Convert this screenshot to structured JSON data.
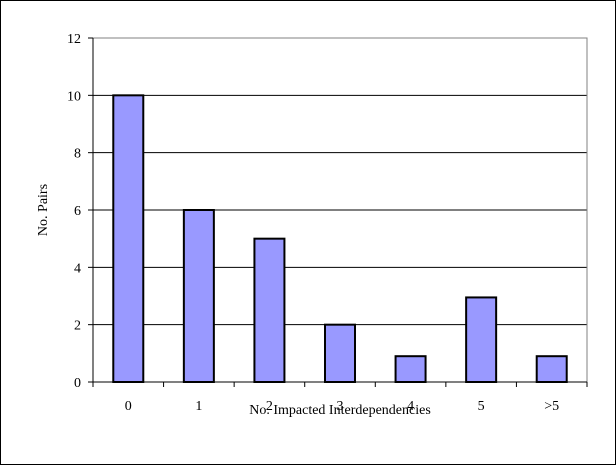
{
  "chart_data": {
    "type": "bar",
    "categories": [
      "0",
      "1",
      "2",
      "3",
      "4",
      "5",
      ">5"
    ],
    "values": [
      10,
      6,
      5,
      2,
      0.9,
      2.95,
      0.9
    ],
    "xlabel": "No. Impacted Interdependencies",
    "ylabel": "No. Pairs",
    "ylim": [
      0,
      12
    ],
    "yticks": [
      "0",
      "2",
      "4",
      "6",
      "8",
      "10",
      "12"
    ],
    "grid": true,
    "legend": "none",
    "colors": {
      "bar_fill": "#9999ff",
      "bar_stroke": "#000000",
      "grid": "#000000",
      "plot_bg": "#ffffff"
    }
  }
}
